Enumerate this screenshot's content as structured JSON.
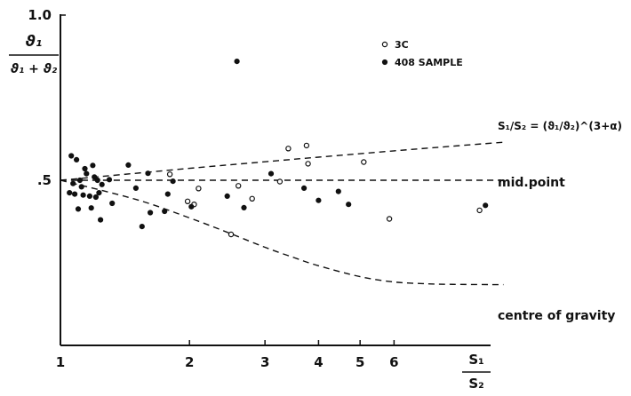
{
  "chart_data": {
    "type": "scatter",
    "x_scale": "log",
    "xlim": [
      1,
      11
    ],
    "ylim": [
      0,
      1.0
    ],
    "x_ticks": [
      {
        "value": 1,
        "label": "1"
      },
      {
        "value": 2,
        "label": "2"
      },
      {
        "value": 3,
        "label": "3"
      },
      {
        "value": 4,
        "label": "4"
      },
      {
        "value": 5,
        "label": "5"
      },
      {
        "value": 6,
        "label": "6"
      }
    ],
    "y_ticks": [
      {
        "value": 0.5,
        "label": ".5"
      },
      {
        "value": 1.0,
        "label": "1.0"
      }
    ],
    "ylabel": {
      "num": "ϑ₁",
      "den": "ϑ₁ + ϑ₂"
    },
    "xlabel": {
      "num": "S₁",
      "den": "S₂"
    },
    "legend": {
      "placement": "top-right",
      "entries": [
        {
          "marker": "open",
          "label": "3C"
        },
        {
          "marker": "filled",
          "label": "408 SAMPLE"
        }
      ]
    },
    "curves": [
      {
        "label": "S₁/S₂ = (ϑ₁/ϑ₂)^(3+α)",
        "points": [
          [
            1,
            0.5
          ],
          [
            2,
            0.536
          ],
          [
            3,
            0.556
          ],
          [
            4,
            0.57
          ],
          [
            6,
            0.589
          ],
          [
            8,
            0.602
          ],
          [
            10.8,
            0.615
          ]
        ]
      },
      {
        "label": "mid.point",
        "points": [
          [
            1,
            0.5
          ],
          [
            10.8,
            0.5
          ]
        ]
      },
      {
        "label": "centre of gravity",
        "points": [
          [
            1,
            0.5
          ],
          [
            1.5,
            0.442
          ],
          [
            2,
            0.386
          ],
          [
            2.5,
            0.338
          ],
          [
            3,
            0.297
          ],
          [
            3.5,
            0.266
          ],
          [
            4,
            0.241
          ],
          [
            5,
            0.208
          ],
          [
            6,
            0.192
          ],
          [
            7,
            0.187
          ],
          [
            8,
            0.185
          ],
          [
            10.8,
            0.184
          ]
        ]
      }
    ],
    "series": [
      {
        "marker": "open",
        "points": [
          [
            1.8,
            0.518
          ],
          [
            1.98,
            0.436
          ],
          [
            2.05,
            0.427
          ],
          [
            2.1,
            0.475
          ],
          [
            2.5,
            0.336
          ],
          [
            2.6,
            0.483
          ],
          [
            2.8,
            0.444
          ],
          [
            3.25,
            0.496
          ],
          [
            3.4,
            0.596
          ],
          [
            3.75,
            0.605
          ],
          [
            3.78,
            0.55
          ],
          [
            5.1,
            0.555
          ],
          [
            5.85,
            0.383
          ],
          [
            9.5,
            0.409
          ]
        ]
      },
      {
        "marker": "filled",
        "points": [
          [
            1.05,
            0.462
          ],
          [
            1.06,
            0.574
          ],
          [
            1.07,
            0.49
          ],
          [
            1.08,
            0.458
          ],
          [
            1.09,
            0.562
          ],
          [
            1.1,
            0.413
          ],
          [
            1.11,
            0.5
          ],
          [
            1.12,
            0.48
          ],
          [
            1.13,
            0.455
          ],
          [
            1.14,
            0.535
          ],
          [
            1.15,
            0.52
          ],
          [
            1.17,
            0.452
          ],
          [
            1.18,
            0.416
          ],
          [
            1.19,
            0.545
          ],
          [
            1.2,
            0.51
          ],
          [
            1.21,
            0.449
          ],
          [
            1.22,
            0.5
          ],
          [
            1.23,
            0.462
          ],
          [
            1.24,
            0.38
          ],
          [
            1.25,
            0.487
          ],
          [
            1.3,
            0.502
          ],
          [
            1.32,
            0.43
          ],
          [
            1.44,
            0.546
          ],
          [
            1.5,
            0.476
          ],
          [
            1.55,
            0.36
          ],
          [
            1.6,
            0.521
          ],
          [
            1.62,
            0.402
          ],
          [
            1.75,
            0.406
          ],
          [
            1.78,
            0.458
          ],
          [
            1.83,
            0.497
          ],
          [
            2.02,
            0.42
          ],
          [
            2.45,
            0.452
          ],
          [
            2.58,
            0.86
          ],
          [
            2.68,
            0.417
          ],
          [
            3.1,
            0.52
          ],
          [
            3.7,
            0.476
          ],
          [
            4.0,
            0.439
          ],
          [
            4.45,
            0.466
          ],
          [
            4.7,
            0.427
          ],
          [
            9.8,
            0.424
          ]
        ]
      }
    ]
  }
}
